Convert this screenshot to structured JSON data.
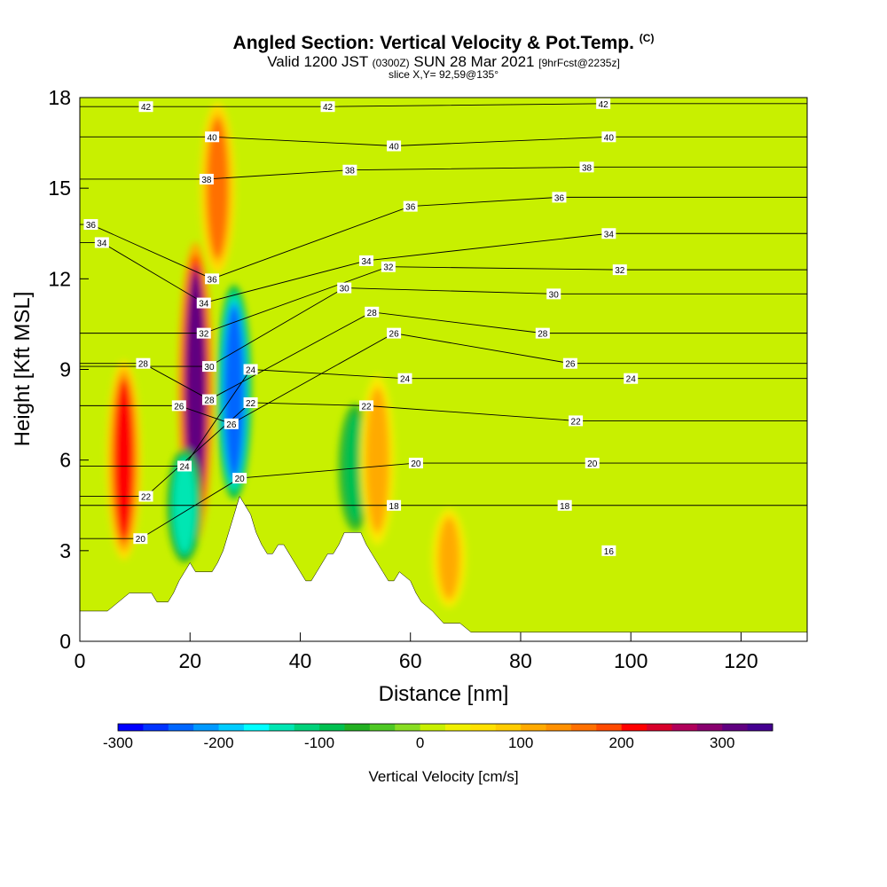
{
  "title": {
    "main": "Angled Section: Vertical Velocity & Pot.Temp.",
    "copyright": "(C)",
    "valid_prefix": "Valid 1200 JST",
    "valid_utc": "(0300Z)",
    "valid_date": "SUN 28 Mar 2021",
    "valid_fcst": "[9hrFcst@2235z]",
    "slice": "slice X,Y= 92,59@135°"
  },
  "chart_data": {
    "type": "heatmap",
    "xlabel": "Distance [nm]",
    "ylabel": "Height [Kft MSL]",
    "xlim": [
      0,
      132
    ],
    "ylim": [
      0,
      18
    ],
    "x_ticks": [
      0,
      20,
      40,
      60,
      80,
      100,
      120
    ],
    "y_ticks": [
      0,
      3,
      6,
      9,
      12,
      15,
      18
    ],
    "colorbar": {
      "label": "Vertical Velocity [cm/s]",
      "range": [
        -300,
        350
      ],
      "step": 25,
      "tick_values": [
        -300,
        -200,
        -100,
        0,
        100,
        200,
        300
      ],
      "colors": [
        "#0000ff",
        "#0033ff",
        "#0066ff",
        "#0099ff",
        "#00ccff",
        "#00ffff",
        "#00e6b3",
        "#00d27a",
        "#00c050",
        "#22b022",
        "#4ec824",
        "#88dd22",
        "#c8f000",
        "#f0f000",
        "#ffe100",
        "#ffcc00",
        "#ffaa00",
        "#ff9000",
        "#ff7000",
        "#ff4a00",
        "#ff0000",
        "#d8002a",
        "#b0005a",
        "#88006e",
        "#600080",
        "#440090"
      ]
    },
    "terrain_profile": [
      [
        0,
        1.0
      ],
      [
        5,
        1.0
      ],
      [
        7,
        1.3
      ],
      [
        9,
        1.6
      ],
      [
        13,
        1.6
      ],
      [
        14,
        1.3
      ],
      [
        16,
        1.3
      ],
      [
        17,
        1.6
      ],
      [
        18,
        2.0
      ],
      [
        19,
        2.3
      ],
      [
        20,
        2.6
      ],
      [
        21,
        2.3
      ],
      [
        24,
        2.3
      ],
      [
        25,
        2.6
      ],
      [
        26,
        3.0
      ],
      [
        27,
        3.6
      ],
      [
        28,
        4.2
      ],
      [
        29,
        4.8
      ],
      [
        30,
        4.5
      ],
      [
        31,
        4.2
      ],
      [
        32,
        3.6
      ],
      [
        33,
        3.2
      ],
      [
        34,
        2.9
      ],
      [
        35,
        2.9
      ],
      [
        36,
        3.2
      ],
      [
        37,
        3.2
      ],
      [
        38,
        2.9
      ],
      [
        39,
        2.6
      ],
      [
        40,
        2.3
      ],
      [
        41,
        2.0
      ],
      [
        42,
        2.0
      ],
      [
        43,
        2.3
      ],
      [
        44,
        2.6
      ],
      [
        45,
        2.9
      ],
      [
        46,
        2.9
      ],
      [
        47,
        3.2
      ],
      [
        48,
        3.6
      ],
      [
        51,
        3.6
      ],
      [
        52,
        3.2
      ],
      [
        53,
        2.9
      ],
      [
        54,
        2.6
      ],
      [
        55,
        2.3
      ],
      [
        56,
        2.0
      ],
      [
        57,
        2.0
      ],
      [
        58,
        2.3
      ],
      [
        60,
        2.0
      ],
      [
        61,
        1.6
      ],
      [
        62,
        1.3
      ],
      [
        64,
        1.0
      ],
      [
        66,
        0.6
      ],
      [
        69,
        0.6
      ],
      [
        71,
        0.3
      ],
      [
        132,
        0.3
      ]
    ],
    "vv_features": [
      {
        "type": "updraft",
        "x": 8,
        "ybot": 2.5,
        "ytop": 9.5,
        "value": 200
      },
      {
        "type": "updraft",
        "x": 21,
        "ybot": 3.0,
        "ytop": 13.5,
        "value": 300
      },
      {
        "type": "updraft",
        "x": 25,
        "ybot": 12.0,
        "ytop": 18.0,
        "value": 150
      },
      {
        "type": "downdraft",
        "x": 28,
        "ybot": 4.5,
        "ytop": 12.0,
        "value": -250
      },
      {
        "type": "downdraft",
        "x": 19,
        "ybot": 2.5,
        "ytop": 6.5,
        "value": -150
      },
      {
        "type": "downdraft",
        "x": 50,
        "ybot": 3.5,
        "ytop": 8.0,
        "value": -100
      },
      {
        "type": "updraft",
        "x": 54,
        "ybot": 3.0,
        "ytop": 9.0,
        "value": 120
      },
      {
        "type": "updraft",
        "x": 67,
        "ybot": 1.0,
        "ytop": 4.5,
        "value": 100
      }
    ],
    "theta_labels": [
      {
        "x": 12,
        "y": 17.7,
        "text": "42"
      },
      {
        "x": 45,
        "y": 17.7,
        "text": "42"
      },
      {
        "x": 95,
        "y": 17.8,
        "text": "42"
      },
      {
        "x": 24,
        "y": 16.7,
        "text": "40"
      },
      {
        "x": 57,
        "y": 16.4,
        "text": "40"
      },
      {
        "x": 96,
        "y": 16.7,
        "text": "40"
      },
      {
        "x": 23,
        "y": 15.3,
        "text": "38"
      },
      {
        "x": 49,
        "y": 15.6,
        "text": "38"
      },
      {
        "x": 92,
        "y": 15.7,
        "text": "38"
      },
      {
        "x": 2,
        "y": 13.8,
        "text": "36"
      },
      {
        "x": 60,
        "y": 14.4,
        "text": "36"
      },
      {
        "x": 87,
        "y": 14.7,
        "text": "36"
      },
      {
        "x": 24,
        "y": 12.0,
        "text": "36"
      },
      {
        "x": 4,
        "y": 13.2,
        "text": "34"
      },
      {
        "x": 52,
        "y": 12.6,
        "text": "34"
      },
      {
        "x": 96,
        "y": 13.5,
        "text": "34"
      },
      {
        "x": 22.5,
        "y": 11.2,
        "text": "34"
      },
      {
        "x": 56,
        "y": 12.4,
        "text": "32"
      },
      {
        "x": 98,
        "y": 12.3,
        "text": "32"
      },
      {
        "x": 22.5,
        "y": 10.2,
        "text": "32"
      },
      {
        "x": 48,
        "y": 11.7,
        "text": "30"
      },
      {
        "x": 86,
        "y": 11.5,
        "text": "30"
      },
      {
        "x": 23.5,
        "y": 9.1,
        "text": "30"
      },
      {
        "x": 53,
        "y": 10.9,
        "text": "28"
      },
      {
        "x": 84,
        "y": 10.2,
        "text": "28"
      },
      {
        "x": 11.5,
        "y": 9.2,
        "text": "28"
      },
      {
        "x": 23.5,
        "y": 8.0,
        "text": "28"
      },
      {
        "x": 57,
        "y": 10.2,
        "text": "26"
      },
      {
        "x": 89,
        "y": 9.2,
        "text": "26"
      },
      {
        "x": 18,
        "y": 7.8,
        "text": "26"
      },
      {
        "x": 27.5,
        "y": 7.2,
        "text": "26"
      },
      {
        "x": 59,
        "y": 8.7,
        "text": "24"
      },
      {
        "x": 100,
        "y": 8.7,
        "text": "24"
      },
      {
        "x": 31,
        "y": 9.0,
        "text": "24"
      },
      {
        "x": 19,
        "y": 5.8,
        "text": "24"
      },
      {
        "x": 52,
        "y": 7.8,
        "text": "22"
      },
      {
        "x": 90,
        "y": 7.3,
        "text": "22"
      },
      {
        "x": 31,
        "y": 7.9,
        "text": "22"
      },
      {
        "x": 12,
        "y": 4.8,
        "text": "22"
      },
      {
        "x": 61,
        "y": 5.9,
        "text": "20"
      },
      {
        "x": 93,
        "y": 5.9,
        "text": "20"
      },
      {
        "x": 29,
        "y": 5.4,
        "text": "20"
      },
      {
        "x": 11,
        "y": 3.4,
        "text": "20"
      },
      {
        "x": 57,
        "y": 4.5,
        "text": "18"
      },
      {
        "x": 88,
        "y": 4.5,
        "text": "18"
      },
      {
        "x": 96,
        "y": 3.0,
        "text": "16"
      }
    ]
  }
}
